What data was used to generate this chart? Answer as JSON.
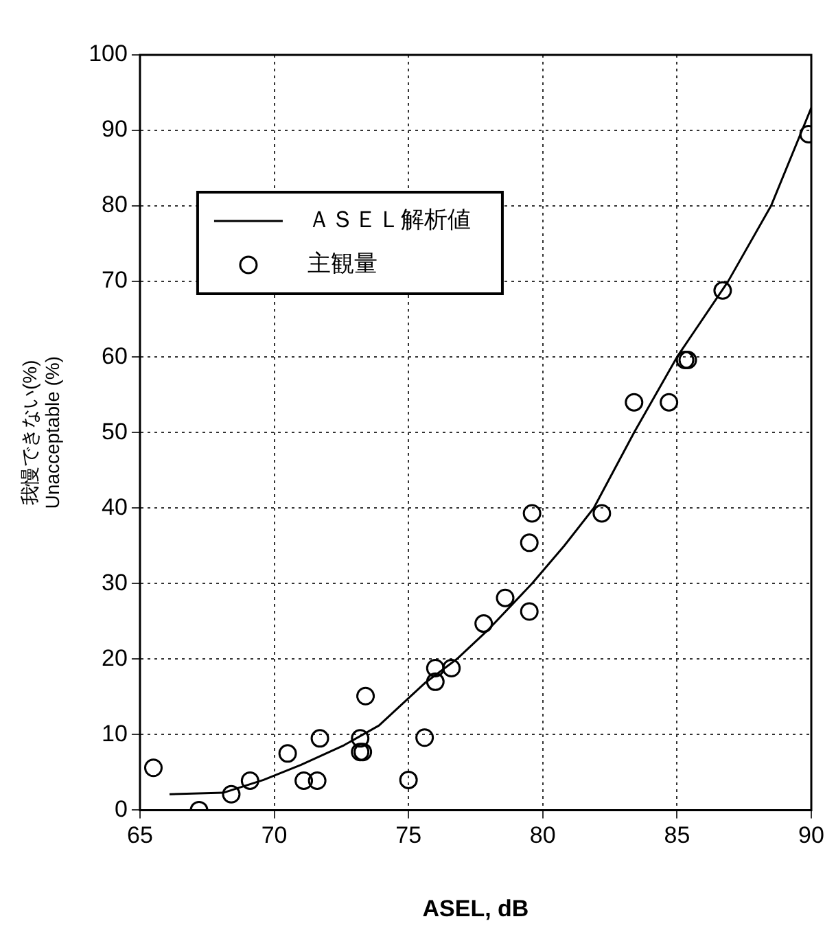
{
  "chart_data": {
    "type": "scatter",
    "xlabel": "ASEL, dB",
    "ylabel": "我慢できない(%)\nUnacceptable (%)",
    "xlim": [
      65,
      90
    ],
    "xticks": [
      65,
      70,
      75,
      80,
      85,
      90
    ],
    "ylim": [
      0,
      100
    ],
    "yticks": [
      0,
      10,
      20,
      30,
      40,
      50,
      60,
      70,
      80,
      90,
      100
    ],
    "grid": true,
    "legend": "top left",
    "series": [
      {
        "name": "ＡＳＥＬ解析値",
        "type": "line",
        "color": "#000000",
        "marker": "none",
        "line_style": "solid",
        "x": [
          66.1,
          68.1,
          69.6,
          71,
          72.6,
          73.9,
          75.6,
          76.8,
          78,
          79.6,
          80.8,
          81.9,
          83.4,
          85,
          86.9,
          88.5,
          90
        ],
        "values": [
          2.1,
          2.3,
          4,
          6,
          8.6,
          11.2,
          16.8,
          20,
          24,
          30,
          35,
          40,
          50,
          60,
          70,
          80,
          93
        ]
      },
      {
        "name": "主観量",
        "type": "scatter",
        "color": "#000000",
        "marker": "circle",
        "x": [
          65.5,
          67.2,
          68.4,
          69.1,
          70.5,
          71.1,
          71.6,
          71.7,
          73.2,
          73.3,
          73.2,
          73.4,
          75,
          75.6,
          76,
          76,
          76.6,
          77.8,
          78.6,
          79.5,
          79.5,
          79.6,
          82.2,
          83.4,
          84.7,
          85.3,
          85.4,
          86.7,
          89.9
        ],
        "values": [
          5.6,
          0,
          2.1,
          3.9,
          7.5,
          3.9,
          3.9,
          9.5,
          7.7,
          7.7,
          9.5,
          15.1,
          4,
          9.6,
          18.8,
          17,
          18.8,
          24.7,
          28.1,
          26.3,
          35.4,
          39.3,
          39.3,
          54,
          54,
          59.6,
          59.6,
          68.8,
          89.5
        ]
      }
    ]
  }
}
